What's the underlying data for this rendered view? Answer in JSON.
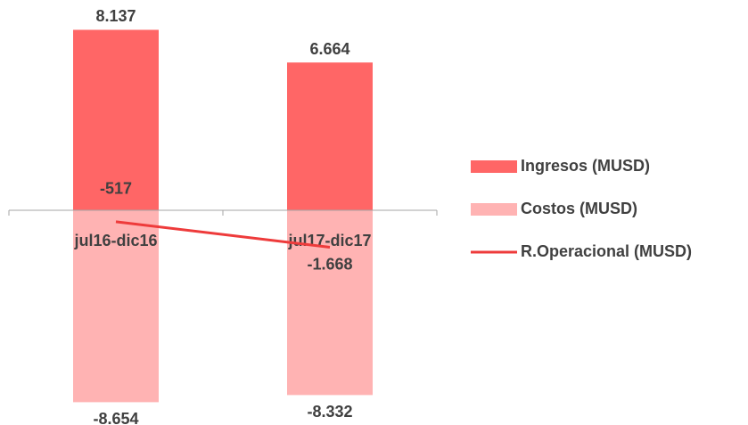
{
  "chart_data": {
    "type": "bar",
    "categories": [
      "jul16-dic16",
      "jul17-dic17"
    ],
    "series": [
      {
        "name": "Ingresos (MUSD)",
        "type": "bar",
        "color": "#ff6666",
        "values": [
          8137,
          6664
        ],
        "value_labels": [
          "8.137",
          "6.664"
        ]
      },
      {
        "name": "Costos (MUSD)",
        "type": "bar",
        "color": "#ffb3b3",
        "values": [
          -8654,
          -8332
        ],
        "value_labels": [
          "-8.654",
          "-8.332"
        ]
      },
      {
        "name": "R.Operacional (MUSD)",
        "type": "line",
        "color": "#ee3b3b",
        "values": [
          -517,
          -1668
        ],
        "value_labels": [
          "-517",
          "-1.668"
        ]
      }
    ],
    "ylim": [
      -9000,
      9000
    ],
    "legend": "right"
  }
}
